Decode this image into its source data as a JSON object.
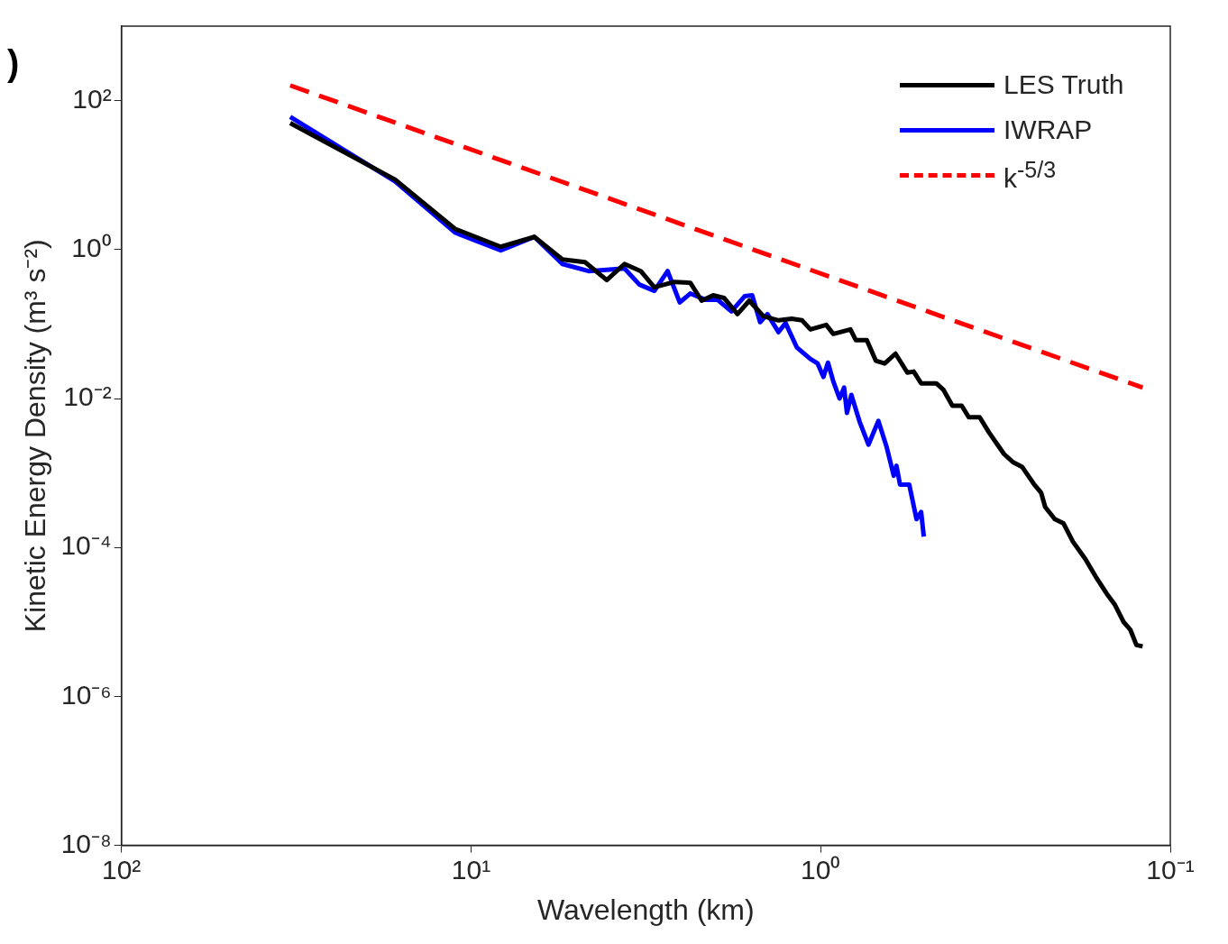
{
  "chart_data": {
    "type": "line",
    "xlabel": "Wavelength (km)",
    "ylabel": "Kinetic Energy Density (m³ s⁻²)",
    "log": "xy",
    "grid": false,
    "legend": "top right",
    "marker": "none",
    "xlim": [
      100,
      0.1
    ],
    "xticks": [
      {
        "value": 100,
        "label": "10²"
      },
      {
        "value": 10,
        "label": "10¹"
      },
      {
        "value": 1,
        "label": "10⁰"
      },
      {
        "value": 0.1,
        "label": "10⁻¹"
      }
    ],
    "ylim": [
      1e-08,
      1000
    ],
    "yticks": [
      {
        "value": 1e-08,
        "label": "10⁻⁸"
      },
      {
        "value": 1e-06,
        "label": "10⁻⁶"
      },
      {
        "value": 0.0001,
        "label": "10⁻⁴"
      },
      {
        "value": 0.01,
        "label": "10⁻²"
      },
      {
        "value": 1,
        "label": "10⁰"
      },
      {
        "value": 100,
        "label": "10²"
      }
    ],
    "annotations": [
      ")"
    ],
    "series": [
      {
        "name": "LES Truth",
        "color": "#000000",
        "line_style": "solid",
        "x": [
          32.9,
          16.5,
          11.1,
          8.22,
          6.59,
          5.48,
          4.72,
          4.09,
          3.64,
          3.27,
          2.99,
          2.62,
          2.36,
          2.19,
          2.03,
          1.89,
          1.73,
          1.6,
          1.46,
          1.32,
          1.21,
          1.13,
          1.07,
          0.964,
          0.92,
          0.822,
          0.793,
          0.738,
          0.695,
          0.656,
          0.611,
          0.565,
          0.542,
          0.516,
          0.467,
          0.446,
          0.42,
          0.395,
          0.377,
          0.351,
          0.33,
          0.312,
          0.299,
          0.282,
          0.265,
          0.245,
          0.234,
          0.228,
          0.214,
          0.202,
          0.19,
          0.175,
          0.162,
          0.152,
          0.144,
          0.136,
          0.13,
          0.125,
          0.12
        ],
        "values": [
          50,
          8.71,
          1.89,
          1.09,
          1.48,
          0.737,
          0.678,
          0.389,
          0.641,
          0.514,
          0.312,
          0.368,
          0.358,
          0.206,
          0.243,
          0.224,
          0.136,
          0.206,
          0.128,
          0.112,
          0.118,
          0.112,
          0.0847,
          0.0973,
          0.0737,
          0.0847,
          0.0607,
          0.0607,
          0.0321,
          0.0295,
          0.04,
          0.0223,
          0.023,
          0.016,
          0.016,
          0.0132,
          0.008,
          0.008,
          0.0056,
          0.0056,
          0.0035,
          0.0024,
          0.0018,
          0.0014,
          0.0012,
          0.0007,
          0.00054,
          0.00035,
          0.00024,
          0.00021,
          0.00012,
          7e-05,
          3.8e-05,
          2.4e-05,
          1.7e-05,
          1e-05,
          7.8e-06,
          4.9e-06,
          4.7e-06
        ]
      },
      {
        "name": "IWRAP",
        "color": "#0000ff",
        "line_style": "solid",
        "x": [
          32.9,
          16.5,
          11.1,
          8.22,
          6.59,
          5.48,
          4.61,
          3.64,
          3.3,
          2.99,
          2.74,
          2.53,
          2.36,
          2.13,
          1.97,
          1.8,
          1.65,
          1.57,
          1.49,
          1.42,
          1.32,
          1.26,
          1.17,
          1.07,
          1.02,
          0.982,
          0.953,
          0.92,
          0.883,
          0.857,
          0.841,
          0.817,
          0.774,
          0.73,
          0.684,
          0.647,
          0.618,
          0.607,
          0.593,
          0.558,
          0.532,
          0.516,
          0.507
        ],
        "values": [
          60.7,
          8.24,
          1.69,
          0.973,
          1.48,
          0.641,
          0.514,
          0.558,
          0.339,
          0.279,
          0.514,
          0.195,
          0.257,
          0.211,
          0.211,
          0.148,
          0.236,
          0.243,
          0.106,
          0.136,
          0.078,
          0.103,
          0.0486,
          0.0339,
          0.0295,
          0.0195,
          0.0303,
          0.0169,
          0.01,
          0.014,
          0.0064,
          0.0112,
          0.0049,
          0.0024,
          0.005,
          0.0022,
          0.00092,
          0.00125,
          0.0007,
          0.0007,
          0.00024,
          0.0003,
          0.00014
        ]
      },
      {
        "name": "k$^{-5/3}$",
        "color": "#ff0000",
        "line_style": "dashed",
        "x": [
          32.9,
          0.12
        ],
        "values": [
          160,
          0.014
        ]
      }
    ]
  }
}
